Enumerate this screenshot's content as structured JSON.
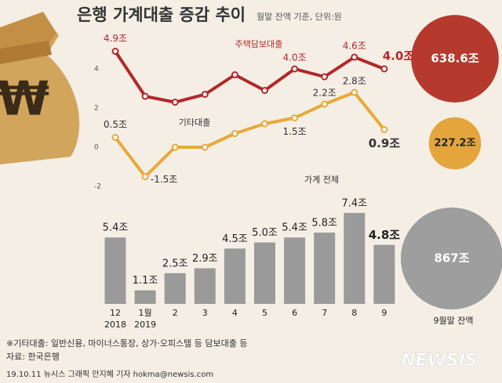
{
  "chart_data": [
    {
      "type": "line",
      "title": "은행 가계대출 증감 추이",
      "subtitle": "월말 잔액 기준, 단위:원",
      "ylim": [
        -2.5,
        6
      ],
      "yticks": [
        -2,
        0,
        2,
        4
      ],
      "series": [
        {
          "name": "주택담보대출",
          "color": "#b3282a",
          "values": [
            4.9,
            2.6,
            2.3,
            2.7,
            3.7,
            2.9,
            4.0,
            3.6,
            4.6,
            4.0
          ],
          "value_labels": [
            "4.9조",
            null,
            null,
            null,
            null,
            null,
            "4.0조",
            null,
            "4.6조",
            "4.0조"
          ]
        },
        {
          "name": "기타대출",
          "color": "#e8a93a",
          "values": [
            0.5,
            -1.5,
            0,
            0,
            0.7,
            1.2,
            1.5,
            2.2,
            2.8,
            0.9
          ],
          "value_labels": [
            "0.5조",
            "-1.5조",
            null,
            null,
            null,
            null,
            "1.5조",
            "2.2조",
            "2.8조",
            "0.9조"
          ]
        }
      ]
    },
    {
      "type": "bar",
      "name": "가계 전체",
      "color": "#9a9a9a",
      "ylim": [
        0,
        8
      ],
      "categories": [
        "12",
        "1월",
        "2",
        "3",
        "4",
        "5",
        "6",
        "7",
        "8",
        "9"
      ],
      "years": [
        "2018",
        "2019",
        null,
        null,
        null,
        null,
        null,
        null,
        null,
        null
      ],
      "values": [
        5.4,
        1.1,
        2.5,
        2.9,
        4.5,
        5.0,
        5.4,
        5.8,
        7.4,
        4.8
      ],
      "value_labels": [
        "5.4조",
        "1.1조",
        "2.5조",
        "2.9조",
        "4.5조",
        "5.0조",
        "5.4조",
        "5.8조",
        "7.4조",
        "4.8조"
      ]
    },
    {
      "type": "bubble",
      "label": "9월말 잔액",
      "values": [
        638.6,
        227.2,
        867
      ],
      "value_labels": [
        "638.6조",
        "227.2조",
        "867조"
      ],
      "colors": [
        "#b5392d",
        "#e3a53c",
        "#9e9e9e"
      ]
    }
  ],
  "footer": {
    "note": "※기타대출: 일반신용, 마이너스통장, 상가·오피스텔 등 담보대출 등",
    "source": "자료: 한국은행",
    "credit": "19.10.11 뉴시스 그래픽 안지혜 기자 hokma@newsis.com",
    "logo": "NEWSIS"
  }
}
